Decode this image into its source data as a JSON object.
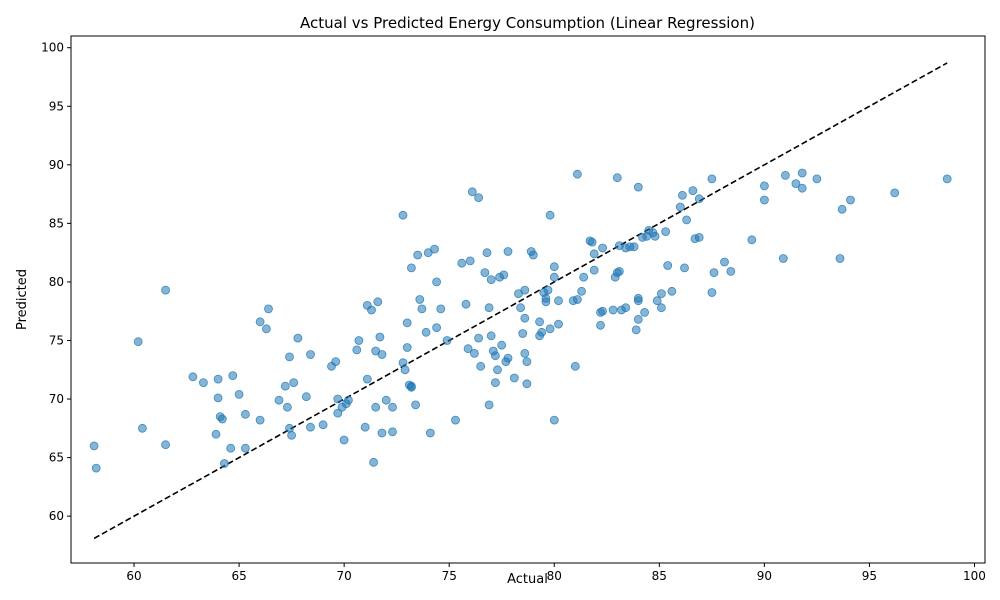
{
  "chart_data": {
    "type": "scatter",
    "title": "Actual vs Predicted Energy Consumption (Linear Regression)",
    "xlabel": "Actual",
    "ylabel": "Predicted",
    "xlim": [
      57,
      100.5
    ],
    "ylim": [
      56,
      101
    ],
    "xticks": [
      60,
      65,
      70,
      75,
      80,
      85,
      90,
      95,
      100
    ],
    "yticks": [
      60,
      65,
      70,
      75,
      80,
      85,
      90,
      95,
      100
    ],
    "grid": false,
    "point_color": "#1f77b4",
    "point_alpha": 0.55,
    "reference_line": {
      "style": "dashed",
      "color": "#000000",
      "from": [
        58.1,
        58.1
      ],
      "to": [
        98.7,
        98.7
      ]
    },
    "series": [
      {
        "points": [
          [
            58.1,
            66.0
          ],
          [
            58.2,
            64.1
          ],
          [
            60.2,
            74.9
          ],
          [
            60.4,
            67.5
          ],
          [
            61.5,
            79.3
          ],
          [
            61.5,
            66.1
          ],
          [
            62.8,
            71.9
          ],
          [
            63.3,
            71.4
          ],
          [
            63.9,
            67.0
          ],
          [
            64.0,
            71.7
          ],
          [
            64.0,
            70.1
          ],
          [
            64.1,
            68.5
          ],
          [
            64.2,
            68.3
          ],
          [
            64.3,
            64.5
          ],
          [
            64.6,
            65.8
          ],
          [
            64.7,
            72.0
          ],
          [
            65.0,
            70.4
          ],
          [
            65.3,
            68.7
          ],
          [
            65.3,
            65.8
          ],
          [
            66.0,
            76.6
          ],
          [
            66.0,
            68.2
          ],
          [
            66.3,
            76.0
          ],
          [
            66.4,
            77.7
          ],
          [
            66.9,
            69.9
          ],
          [
            67.2,
            71.1
          ],
          [
            67.3,
            69.3
          ],
          [
            67.4,
            73.6
          ],
          [
            67.4,
            67.5
          ],
          [
            67.5,
            66.9
          ],
          [
            67.6,
            71.4
          ],
          [
            67.8,
            75.2
          ],
          [
            68.2,
            70.2
          ],
          [
            68.4,
            73.8
          ],
          [
            68.4,
            67.6
          ],
          [
            69.0,
            67.8
          ],
          [
            69.4,
            72.8
          ],
          [
            69.6,
            73.2
          ],
          [
            69.7,
            70.0
          ],
          [
            69.7,
            68.8
          ],
          [
            69.9,
            69.3
          ],
          [
            70.0,
            66.5
          ],
          [
            70.1,
            69.6
          ],
          [
            70.2,
            69.9
          ],
          [
            70.6,
            74.2
          ],
          [
            70.7,
            75.0
          ],
          [
            71.0,
            67.6
          ],
          [
            71.1,
            78.0
          ],
          [
            71.1,
            71.7
          ],
          [
            71.3,
            77.6
          ],
          [
            71.4,
            64.6
          ],
          [
            71.5,
            69.3
          ],
          [
            71.5,
            74.1
          ],
          [
            71.6,
            78.3
          ],
          [
            71.7,
            75.3
          ],
          [
            71.8,
            73.8
          ],
          [
            71.8,
            67.1
          ],
          [
            72.0,
            69.9
          ],
          [
            72.3,
            69.3
          ],
          [
            72.3,
            67.2
          ],
          [
            72.8,
            85.7
          ],
          [
            72.8,
            73.1
          ],
          [
            72.9,
            72.5
          ],
          [
            73.0,
            76.5
          ],
          [
            73.0,
            74.4
          ],
          [
            73.1,
            71.2
          ],
          [
            73.2,
            81.2
          ],
          [
            73.2,
            71.1
          ],
          [
            73.2,
            71.0
          ],
          [
            73.4,
            69.5
          ],
          [
            73.5,
            82.3
          ],
          [
            73.6,
            78.5
          ],
          [
            73.7,
            77.7
          ],
          [
            73.9,
            75.7
          ],
          [
            74.0,
            82.5
          ],
          [
            74.1,
            67.1
          ],
          [
            74.3,
            82.8
          ],
          [
            74.4,
            80.0
          ],
          [
            74.4,
            76.1
          ],
          [
            74.6,
            77.7
          ],
          [
            74.9,
            75.0
          ],
          [
            75.3,
            68.2
          ],
          [
            75.6,
            81.6
          ],
          [
            75.8,
            78.1
          ],
          [
            75.9,
            74.3
          ],
          [
            76.0,
            81.8
          ],
          [
            76.1,
            87.7
          ],
          [
            76.2,
            73.9
          ],
          [
            76.4,
            87.2
          ],
          [
            76.4,
            75.2
          ],
          [
            76.5,
            72.8
          ],
          [
            76.7,
            80.8
          ],
          [
            76.8,
            82.5
          ],
          [
            76.9,
            77.8
          ],
          [
            76.9,
            69.5
          ],
          [
            77.0,
            80.2
          ],
          [
            77.0,
            75.4
          ],
          [
            77.1,
            74.1
          ],
          [
            77.2,
            73.7
          ],
          [
            77.2,
            71.4
          ],
          [
            77.3,
            72.5
          ],
          [
            77.4,
            80.4
          ],
          [
            77.5,
            74.6
          ],
          [
            77.6,
            80.6
          ],
          [
            77.7,
            73.2
          ],
          [
            77.8,
            82.6
          ],
          [
            77.8,
            73.5
          ],
          [
            78.1,
            71.8
          ],
          [
            78.3,
            79.0
          ],
          [
            78.4,
            77.8
          ],
          [
            78.5,
            75.6
          ],
          [
            78.6,
            79.3
          ],
          [
            78.6,
            76.9
          ],
          [
            78.6,
            73.9
          ],
          [
            78.7,
            73.2
          ],
          [
            78.7,
            71.3
          ],
          [
            78.9,
            82.6
          ],
          [
            79.0,
            82.3
          ],
          [
            79.3,
            76.6
          ],
          [
            79.3,
            75.4
          ],
          [
            79.4,
            75.7
          ],
          [
            79.5,
            79.1
          ],
          [
            79.6,
            78.6
          ],
          [
            79.6,
            78.3
          ],
          [
            79.7,
            79.3
          ],
          [
            79.8,
            85.7
          ],
          [
            79.8,
            76.0
          ],
          [
            80.0,
            81.3
          ],
          [
            80.0,
            80.4
          ],
          [
            80.0,
            68.2
          ],
          [
            80.2,
            78.4
          ],
          [
            80.2,
            76.4
          ],
          [
            80.9,
            78.4
          ],
          [
            81.0,
            72.8
          ],
          [
            81.1,
            89.2
          ],
          [
            81.1,
            78.5
          ],
          [
            81.3,
            79.2
          ],
          [
            81.4,
            80.4
          ],
          [
            81.7,
            83.5
          ],
          [
            81.8,
            83.4
          ],
          [
            81.9,
            82.4
          ],
          [
            81.9,
            81.0
          ],
          [
            82.2,
            77.4
          ],
          [
            82.2,
            76.3
          ],
          [
            82.3,
            82.9
          ],
          [
            82.3,
            77.5
          ],
          [
            82.8,
            77.6
          ],
          [
            82.9,
            80.4
          ],
          [
            83.0,
            80.8
          ],
          [
            83.0,
            88.9
          ],
          [
            83.1,
            83.1
          ],
          [
            83.1,
            80.9
          ],
          [
            83.2,
            77.6
          ],
          [
            83.4,
            77.8
          ],
          [
            83.4,
            82.9
          ],
          [
            83.6,
            83.0
          ],
          [
            83.8,
            83.0
          ],
          [
            83.9,
            75.9
          ],
          [
            84.0,
            88.1
          ],
          [
            84.0,
            78.4
          ],
          [
            84.0,
            78.6
          ],
          [
            84.0,
            76.8
          ],
          [
            84.2,
            83.8
          ],
          [
            84.3,
            77.4
          ],
          [
            84.4,
            83.9
          ],
          [
            84.5,
            84.4
          ],
          [
            84.7,
            84.2
          ],
          [
            84.8,
            83.9
          ],
          [
            84.9,
            78.4
          ],
          [
            85.1,
            79.0
          ],
          [
            85.1,
            77.8
          ],
          [
            85.3,
            84.3
          ],
          [
            85.4,
            81.4
          ],
          [
            85.6,
            79.2
          ],
          [
            86.0,
            86.4
          ],
          [
            86.1,
            87.4
          ],
          [
            86.2,
            81.2
          ],
          [
            86.3,
            85.3
          ],
          [
            86.6,
            87.8
          ],
          [
            86.7,
            83.7
          ],
          [
            86.9,
            83.8
          ],
          [
            86.9,
            87.1
          ],
          [
            87.5,
            88.8
          ],
          [
            87.5,
            79.1
          ],
          [
            87.6,
            80.8
          ],
          [
            88.1,
            81.7
          ],
          [
            88.4,
            80.9
          ],
          [
            89.4,
            83.6
          ],
          [
            90.0,
            88.2
          ],
          [
            90.0,
            87.0
          ],
          [
            90.9,
            82.0
          ],
          [
            91.0,
            89.1
          ],
          [
            91.5,
            88.4
          ],
          [
            91.8,
            89.3
          ],
          [
            91.8,
            88.0
          ],
          [
            92.5,
            88.8
          ],
          [
            93.6,
            82.0
          ],
          [
            93.7,
            86.2
          ],
          [
            94.1,
            87.0
          ],
          [
            96.2,
            87.6
          ],
          [
            98.7,
            88.8
          ]
        ]
      }
    ]
  }
}
